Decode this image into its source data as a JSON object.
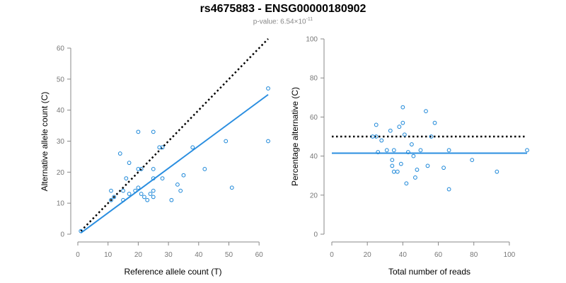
{
  "header": {
    "title": "rs4675883 - ENSG00000180902",
    "pvalue_prefix": "p-value: 6.54×10",
    "pvalue_exponent": "-11"
  },
  "colors": {
    "points": "#1a86d8",
    "fit": "#2a8ee0",
    "reference": "#000000",
    "axis": "#888888"
  },
  "chart_data": [
    {
      "type": "scatter",
      "title": "",
      "xlabel": "Reference allele count (T)",
      "ylabel": "Alternative allele count (C)",
      "xlim": [
        0,
        63
      ],
      "ylim": [
        0,
        60
      ],
      "xticks": [
        0,
        10,
        20,
        30,
        40,
        50,
        60
      ],
      "yticks": [
        0,
        10,
        20,
        30,
        40,
        50,
        60
      ],
      "points": [
        [
          1,
          1
        ],
        [
          11,
          14
        ],
        [
          11,
          11
        ],
        [
          12,
          12
        ],
        [
          14,
          26
        ],
        [
          15,
          14
        ],
        [
          15,
          11
        ],
        [
          16,
          18
        ],
        [
          17,
          23
        ],
        [
          17,
          13
        ],
        [
          19,
          14
        ],
        [
          20,
          33
        ],
        [
          20,
          21
        ],
        [
          20,
          15
        ],
        [
          21,
          21
        ],
        [
          21,
          13
        ],
        [
          22,
          12
        ],
        [
          23,
          11
        ],
        [
          24,
          13
        ],
        [
          25,
          33
        ],
        [
          25,
          21
        ],
        [
          25,
          18
        ],
        [
          25,
          14
        ],
        [
          25,
          12
        ],
        [
          27,
          28
        ],
        [
          28,
          28
        ],
        [
          28,
          18
        ],
        [
          31,
          11
        ],
        [
          33,
          16
        ],
        [
          34,
          14
        ],
        [
          35,
          19
        ],
        [
          38,
          28
        ],
        [
          42,
          21
        ],
        [
          49,
          30
        ],
        [
          51,
          15
        ],
        [
          63,
          47
        ],
        [
          63,
          30
        ]
      ],
      "fit_line": [
        [
          1,
          0.4
        ],
        [
          63,
          45
        ]
      ],
      "reference_line": [
        [
          1,
          1
        ],
        [
          63,
          63
        ]
      ]
    },
    {
      "type": "scatter",
      "title": "",
      "xlabel": "Total number of reads",
      "ylabel": "Percentage alternative (C)",
      "xlim": [
        0,
        110
      ],
      "ylim": [
        0,
        100
      ],
      "xticks": [
        0,
        20,
        40,
        60,
        80,
        100
      ],
      "yticks": [
        0,
        20,
        40,
        60,
        80,
        100
      ],
      "points": [
        [
          23,
          50
        ],
        [
          25,
          56
        ],
        [
          25,
          50
        ],
        [
          26,
          42
        ],
        [
          28,
          48
        ],
        [
          31,
          43
        ],
        [
          33,
          53
        ],
        [
          34,
          38
        ],
        [
          34,
          35
        ],
        [
          35,
          32
        ],
        [
          35,
          43
        ],
        [
          37,
          32
        ],
        [
          38,
          55
        ],
        [
          39,
          36
        ],
        [
          40,
          65
        ],
        [
          40,
          57
        ],
        [
          41,
          51
        ],
        [
          42,
          26
        ],
        [
          43,
          42
        ],
        [
          45,
          46
        ],
        [
          46,
          40
        ],
        [
          47,
          29
        ],
        [
          48,
          33
        ],
        [
          50,
          43
        ],
        [
          53,
          63
        ],
        [
          54,
          35
        ],
        [
          56,
          50
        ],
        [
          58,
          57
        ],
        [
          63,
          34
        ],
        [
          66,
          43
        ],
        [
          66,
          23
        ],
        [
          79,
          38
        ],
        [
          93,
          32
        ],
        [
          110,
          43
        ]
      ],
      "fit_line": [
        [
          0,
          41.5
        ],
        [
          110,
          41.5
        ]
      ],
      "reference_line": [
        [
          0,
          50
        ],
        [
          110,
          50
        ]
      ]
    }
  ]
}
